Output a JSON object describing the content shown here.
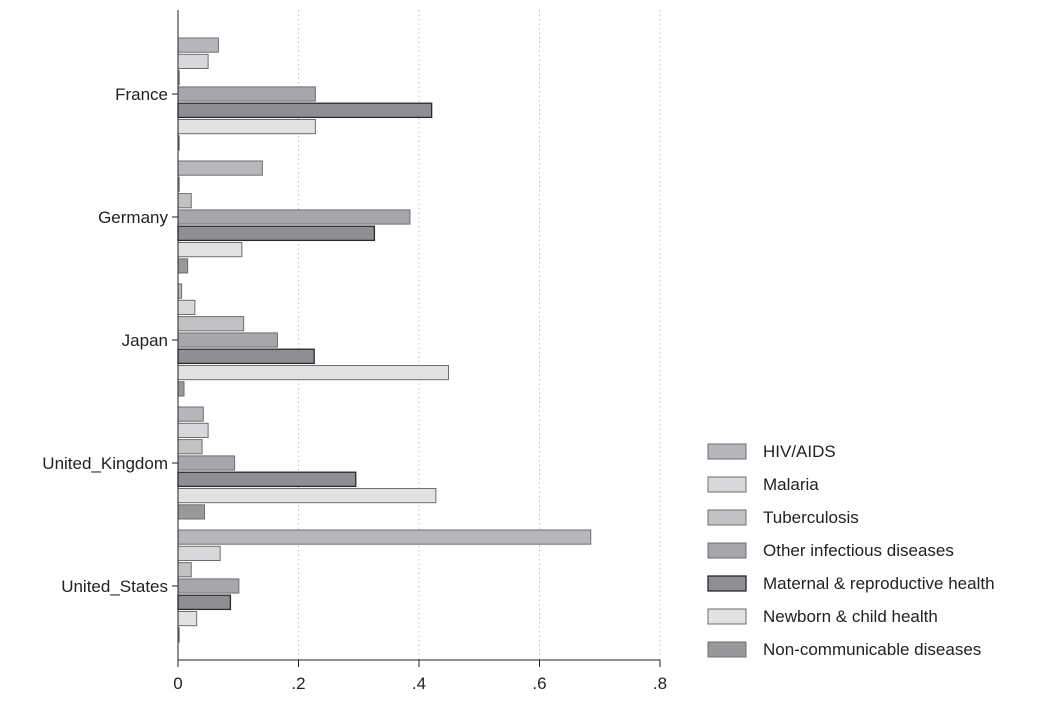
{
  "chart_data": {
    "type": "bar",
    "orientation": "horizontal",
    "categories": [
      "France",
      "Germany",
      "Japan",
      "United_Kingdom",
      "United_States"
    ],
    "series": [
      {
        "name": "HIV/AIDS",
        "color": "#b7b7bb",
        "values": [
          0.067,
          0.14,
          0.006,
          0.042,
          0.685
        ]
      },
      {
        "name": "Malaria",
        "color": "#d8d8da",
        "values": [
          0.05,
          0.0,
          0.028,
          0.05,
          0.07
        ]
      },
      {
        "name": "Tuberculosis",
        "color": "#c2c2c4",
        "values": [
          0.002,
          0.022,
          0.109,
          0.04,
          0.022
        ]
      },
      {
        "name": "Other infectious diseases",
        "color": "#a7a7ab",
        "values": [
          0.228,
          0.385,
          0.165,
          0.094,
          0.101
        ]
      },
      {
        "name": "Maternal & reproductive health",
        "color": "#8f8f93",
        "values": [
          0.421,
          0.326,
          0.226,
          0.295,
          0.087
        ]
      },
      {
        "name": "Newborn & child health",
        "color": "#e2e2e2",
        "values": [
          0.228,
          0.106,
          0.449,
          0.428,
          0.031
        ]
      },
      {
        "name": "Non-communicable diseases",
        "color": "#99999c",
        "values": [
          0.002,
          0.016,
          0.01,
          0.044,
          0.002
        ]
      }
    ],
    "xlim": [
      0,
      0.8
    ],
    "x_ticks": [
      0,
      0.2,
      0.4,
      0.6,
      0.8
    ],
    "x_tick_labels": [
      "0",
      ".2",
      ".4",
      ".6",
      ".8"
    ],
    "grid": "vertical dotted",
    "legend_position": "right"
  }
}
